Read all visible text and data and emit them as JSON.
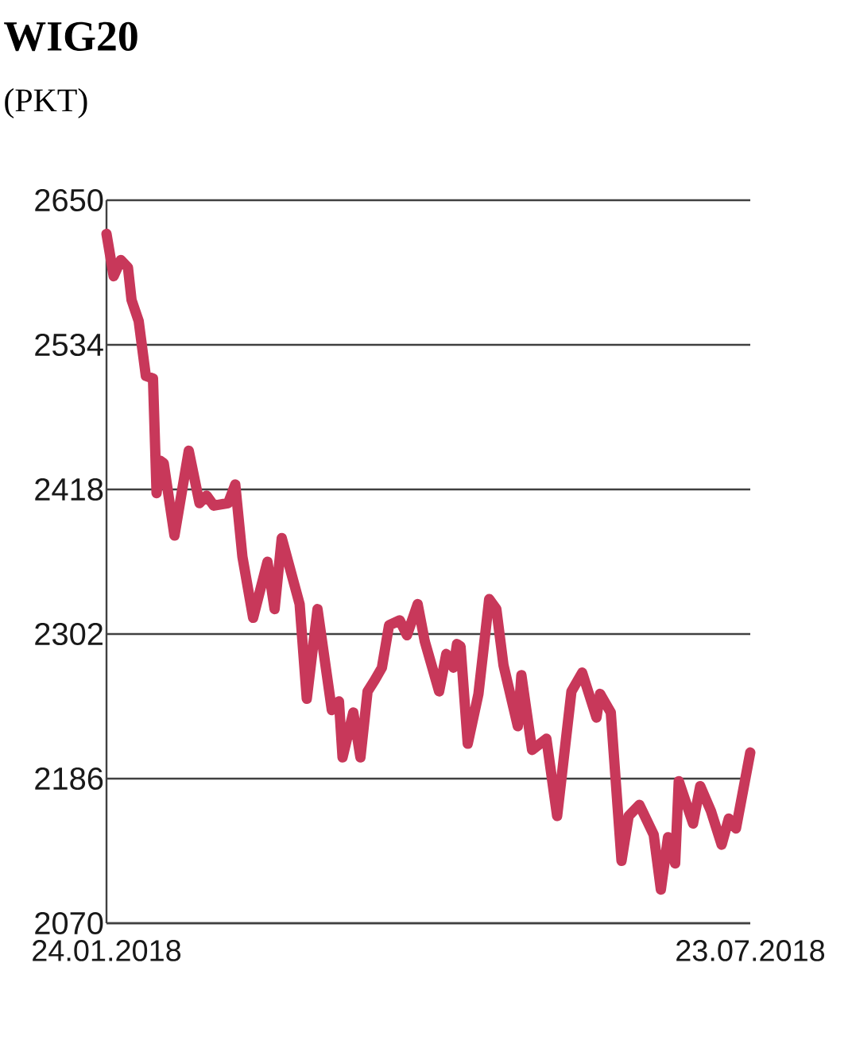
{
  "chart_data": {
    "type": "line",
    "title": "WIG20",
    "subtitle": "(PKT)",
    "x": [
      "2018-01-24",
      "2018-01-26",
      "2018-01-28",
      "2018-01-30",
      "2018-01-31",
      "2018-02-02",
      "2018-02-04",
      "2018-02-06",
      "2018-02-07",
      "2018-02-08",
      "2018-02-09",
      "2018-02-12",
      "2018-02-16",
      "2018-02-19",
      "2018-02-21",
      "2018-02-23",
      "2018-02-27",
      "2018-03-01",
      "2018-03-03",
      "2018-03-06",
      "2018-03-10",
      "2018-03-12",
      "2018-03-14",
      "2018-03-19",
      "2018-03-21",
      "2018-03-24",
      "2018-03-28",
      "2018-03-30",
      "2018-03-31",
      "2018-04-03",
      "2018-04-05",
      "2018-04-07",
      "2018-04-09",
      "2018-04-11",
      "2018-04-13",
      "2018-04-16",
      "2018-04-18",
      "2018-04-21",
      "2018-04-23",
      "2018-04-27",
      "2018-04-29",
      "2018-05-01",
      "2018-05-02",
      "2018-05-03",
      "2018-05-05",
      "2018-05-08",
      "2018-05-11",
      "2018-05-13",
      "2018-05-15",
      "2018-05-19",
      "2018-05-20",
      "2018-05-23",
      "2018-05-27",
      "2018-05-30",
      "2018-06-03",
      "2018-06-06",
      "2018-06-10",
      "2018-06-11",
      "2018-06-14",
      "2018-06-17",
      "2018-06-19",
      "2018-06-22",
      "2018-06-26",
      "2018-06-28",
      "2018-06-30",
      "2018-07-02",
      "2018-07-03",
      "2018-07-07",
      "2018-07-09",
      "2018-07-12",
      "2018-07-15",
      "2018-07-17",
      "2018-07-19",
      "2018-07-23"
    ],
    "series": [
      {
        "color": "#c8385a",
        "values": [
          2623,
          2589,
          2602,
          2596,
          2570,
          2553,
          2509,
          2507,
          2415,
          2441,
          2439,
          2381,
          2449,
          2407,
          2413,
          2405,
          2407,
          2422,
          2364,
          2315,
          2360,
          2322,
          2379,
          2326,
          2250,
          2322,
          2241,
          2248,
          2203,
          2239,
          2203,
          2256,
          2265,
          2275,
          2309,
          2313,
          2301,
          2326,
          2296,
          2256,
          2286,
          2275,
          2294,
          2292,
          2214,
          2254,
          2330,
          2322,
          2277,
          2228,
          2269,
          2209,
          2218,
          2156,
          2256,
          2271,
          2235,
          2254,
          2239,
          2120,
          2156,
          2165,
          2141,
          2097,
          2139,
          2118,
          2184,
          2150,
          2180,
          2160,
          2133,
          2154,
          2146,
          2207
        ]
      }
    ],
    "xlim": [
      "2018-01-24",
      "2018-07-23"
    ],
    "xticks": [
      {
        "value": "2018-01-24",
        "label": "24.01.2018"
      },
      {
        "value": "2018-07-23",
        "label": "23.07.2018"
      }
    ],
    "ylim": [
      2070,
      2650
    ],
    "yticks": [
      2070,
      2186,
      2302,
      2418,
      2534,
      2650
    ],
    "grid": "y"
  }
}
